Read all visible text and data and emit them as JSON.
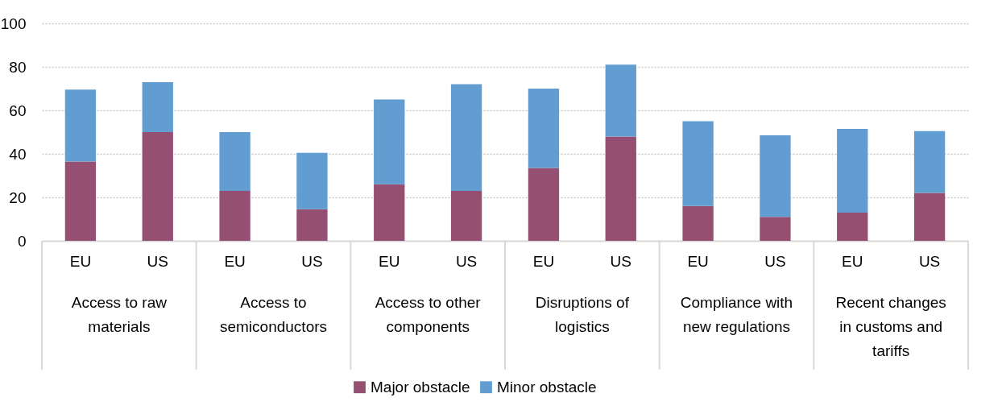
{
  "chart_data": {
    "type": "bar",
    "stacked": true,
    "categories": [
      "EU",
      "US",
      "EU",
      "US",
      "EU",
      "US",
      "EU",
      "US",
      "EU",
      "US",
      "EU",
      "US"
    ],
    "series": [
      {
        "name": "Major obstacle",
        "color": "#954f72",
        "values": [
          36.5,
          50,
          23,
          14.5,
          26,
          23,
          33.5,
          48,
          16,
          11,
          13,
          22
        ]
      },
      {
        "name": "Minor obstacle",
        "color": "#629dd1",
        "values": [
          33,
          23,
          27,
          26,
          39,
          49,
          36.5,
          33,
          39,
          37.5,
          38.5,
          28.5
        ]
      }
    ],
    "annotations": [
      "Access to raw materials",
      "Access to semiconductors",
      "Access to other components",
      "Disruptions of logistics",
      "Compliance with new regulations",
      "Recent changes in customs and tariffs"
    ],
    "ylim": [
      0,
      100
    ],
    "yticks": [
      0,
      20,
      40,
      60,
      80,
      100
    ],
    "grid": "y",
    "legend": "bottom"
  }
}
